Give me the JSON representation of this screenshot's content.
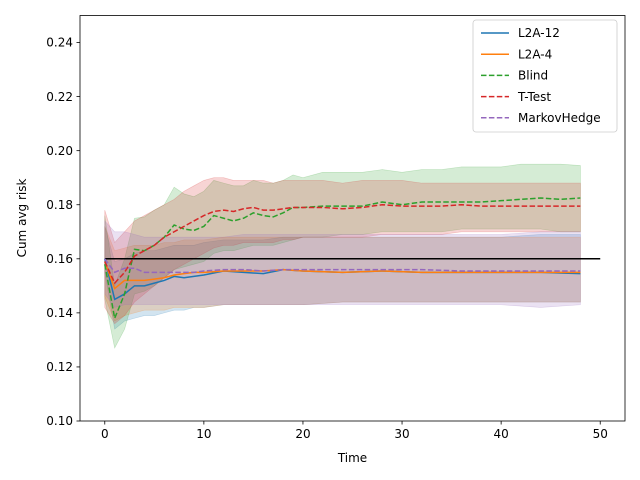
{
  "chart_data": {
    "type": "line",
    "title": "",
    "xlabel": "Time",
    "ylabel": "Cum avg risk",
    "xlim": [
      -2.5,
      52.5
    ],
    "ylim": [
      0.1,
      0.25
    ],
    "xticks": [
      0,
      10,
      20,
      30,
      40,
      50
    ],
    "yticks": [
      0.1,
      0.12,
      0.14,
      0.16,
      0.18,
      0.2,
      0.22,
      0.24
    ],
    "xtick_labels": [
      "0",
      "10",
      "20",
      "30",
      "40",
      "50"
    ],
    "ytick_labels": [
      "0.10",
      "0.12",
      "0.14",
      "0.16",
      "0.18",
      "0.20",
      "0.22",
      "0.24"
    ],
    "grid": false,
    "legend_position": "top-right",
    "reference_line": {
      "y": 0.16,
      "x": [
        0,
        50
      ],
      "color": "#000000"
    },
    "series": [
      {
        "name": "L2A-12",
        "color": "#1f77b4",
        "style": "solid",
        "x": [
          0,
          1,
          2,
          3,
          4,
          5,
          6,
          7,
          8,
          9,
          10,
          12,
          14,
          16,
          18,
          20,
          24,
          28,
          32,
          36,
          40,
          44,
          48
        ],
        "y": [
          0.16,
          0.145,
          0.147,
          0.15,
          0.15,
          0.151,
          0.152,
          0.1535,
          0.153,
          0.1535,
          0.154,
          0.1555,
          0.155,
          0.1545,
          0.156,
          0.1555,
          0.155,
          0.1555,
          0.155,
          0.155,
          0.155,
          0.155,
          0.1545
        ],
        "lower": [
          0.155,
          0.134,
          0.137,
          0.138,
          0.139,
          0.139,
          0.14,
          0.141,
          0.141,
          0.142,
          0.142,
          0.143,
          0.143,
          0.143,
          0.143,
          0.143,
          0.144,
          0.144,
          0.144,
          0.144,
          0.144,
          0.144,
          0.144
        ],
        "upper": [
          0.172,
          0.159,
          0.16,
          0.162,
          0.163,
          0.163,
          0.164,
          0.165,
          0.165,
          0.165,
          0.166,
          0.167,
          0.167,
          0.167,
          0.168,
          0.168,
          0.168,
          0.168,
          0.168,
          0.168,
          0.168,
          0.169,
          0.169
        ]
      },
      {
        "name": "L2A-4",
        "color": "#ff7f0e",
        "style": "solid",
        "x": [
          0,
          1,
          2,
          3,
          4,
          5,
          6,
          7,
          8,
          9,
          10,
          12,
          14,
          16,
          18,
          20,
          24,
          28,
          32,
          36,
          40,
          44,
          48
        ],
        "y": [
          0.159,
          0.149,
          0.152,
          0.152,
          0.152,
          0.1525,
          0.153,
          0.154,
          0.1545,
          0.155,
          0.155,
          0.1555,
          0.1555,
          0.1555,
          0.156,
          0.1555,
          0.155,
          0.1555,
          0.155,
          0.155,
          0.155,
          0.155,
          0.155
        ],
        "lower": [
          0.146,
          0.137,
          0.139,
          0.14,
          0.141,
          0.141,
          0.141,
          0.142,
          0.142,
          0.142,
          0.142,
          0.143,
          0.143,
          0.143,
          0.143,
          0.143,
          0.144,
          0.144,
          0.144,
          0.144,
          0.144,
          0.144,
          0.144
        ],
        "upper": [
          0.172,
          0.163,
          0.164,
          0.165,
          0.165,
          0.165,
          0.166,
          0.166,
          0.167,
          0.167,
          0.167,
          0.168,
          0.168,
          0.168,
          0.168,
          0.168,
          0.168,
          0.168,
          0.168,
          0.168,
          0.168,
          0.168,
          0.168
        ]
      },
      {
        "name": "Blind",
        "color": "#2ca02c",
        "style": "dashed",
        "x": [
          0,
          1,
          2,
          3,
          4,
          5,
          6,
          7,
          8,
          9,
          10,
          11,
          12,
          13,
          14,
          15,
          16,
          17,
          18,
          19,
          20,
          22,
          24,
          26,
          28,
          30,
          32,
          34,
          36,
          38,
          40,
          42,
          44,
          46,
          48
        ],
        "y": [
          0.158,
          0.138,
          0.147,
          0.1635,
          0.163,
          0.165,
          0.168,
          0.1725,
          0.171,
          0.1705,
          0.172,
          0.176,
          0.175,
          0.174,
          0.175,
          0.177,
          0.176,
          0.1755,
          0.177,
          0.179,
          0.179,
          0.1795,
          0.1795,
          0.1795,
          0.181,
          0.18,
          0.181,
          0.181,
          0.181,
          0.181,
          0.1815,
          0.182,
          0.1825,
          0.182,
          0.1825
        ],
        "lower": [
          0.145,
          0.127,
          0.134,
          0.147,
          0.148,
          0.15,
          0.153,
          0.156,
          0.157,
          0.158,
          0.159,
          0.162,
          0.163,
          0.163,
          0.164,
          0.165,
          0.165,
          0.165,
          0.166,
          0.167,
          0.168,
          0.168,
          0.169,
          0.169,
          0.17,
          0.17,
          0.17,
          0.17,
          0.171,
          0.171,
          0.171,
          0.171,
          0.171,
          0.17,
          0.17
        ],
        "upper": [
          0.176,
          0.15,
          0.16,
          0.175,
          0.1755,
          0.178,
          0.18,
          0.1865,
          0.184,
          0.183,
          0.185,
          0.189,
          0.188,
          0.187,
          0.187,
          0.189,
          0.188,
          0.188,
          0.189,
          0.191,
          0.19,
          0.192,
          0.192,
          0.192,
          0.193,
          0.192,
          0.193,
          0.193,
          0.194,
          0.194,
          0.194,
          0.195,
          0.195,
          0.195,
          0.1945
        ]
      },
      {
        "name": "T-Test",
        "color": "#d62728",
        "style": "dashed",
        "x": [
          0,
          1,
          2,
          3,
          4,
          5,
          6,
          7,
          8,
          9,
          10,
          11,
          12,
          13,
          14,
          15,
          16,
          17,
          18,
          19,
          20,
          22,
          24,
          26,
          28,
          30,
          32,
          34,
          36,
          38,
          40,
          42,
          44,
          46,
          48
        ],
        "y": [
          0.159,
          0.151,
          0.155,
          0.161,
          0.163,
          0.165,
          0.168,
          0.17,
          0.172,
          0.174,
          0.176,
          0.1775,
          0.178,
          0.1775,
          0.1785,
          0.179,
          0.178,
          0.178,
          0.1785,
          0.179,
          0.179,
          0.179,
          0.1785,
          0.179,
          0.18,
          0.1795,
          0.1795,
          0.1795,
          0.18,
          0.1795,
          0.1795,
          0.1795,
          0.1795,
          0.1795,
          0.1795
        ],
        "lower": [
          0.142,
          0.136,
          0.139,
          0.144,
          0.147,
          0.15,
          0.153,
          0.156,
          0.158,
          0.16,
          0.162,
          0.164,
          0.165,
          0.165,
          0.166,
          0.166,
          0.166,
          0.166,
          0.167,
          0.167,
          0.168,
          0.168,
          0.168,
          0.168,
          0.169,
          0.169,
          0.169,
          0.169,
          0.17,
          0.17,
          0.17,
          0.17,
          0.17,
          0.17,
          0.17
        ],
        "upper": [
          0.178,
          0.166,
          0.17,
          0.174,
          0.176,
          0.178,
          0.18,
          0.182,
          0.185,
          0.187,
          0.189,
          0.19,
          0.19,
          0.189,
          0.189,
          0.189,
          0.189,
          0.188,
          0.189,
          0.189,
          0.189,
          0.189,
          0.188,
          0.189,
          0.189,
          0.189,
          0.188,
          0.188,
          0.188,
          0.188,
          0.188,
          0.188,
          0.188,
          0.188,
          0.188
        ]
      },
      {
        "name": "MarkovHedge",
        "color": "#9467bd",
        "style": "dashed",
        "x": [
          0,
          1,
          2,
          3,
          4,
          5,
          6,
          7,
          8,
          9,
          10,
          12,
          14,
          16,
          18,
          20,
          24,
          28,
          32,
          36,
          40,
          44,
          48
        ],
        "y": [
          0.16,
          0.155,
          0.1565,
          0.1565,
          0.155,
          0.155,
          0.155,
          0.155,
          0.155,
          0.155,
          0.1555,
          0.156,
          0.156,
          0.1555,
          0.156,
          0.156,
          0.156,
          0.156,
          0.156,
          0.1555,
          0.1555,
          0.1555,
          0.1555
        ],
        "lower": [
          0.147,
          0.142,
          0.143,
          0.143,
          0.143,
          0.143,
          0.143,
          0.143,
          0.143,
          0.143,
          0.143,
          0.143,
          0.143,
          0.143,
          0.143,
          0.143,
          0.143,
          0.143,
          0.143,
          0.143,
          0.143,
          0.142,
          0.143
        ],
        "upper": [
          0.174,
          0.17,
          0.17,
          0.169,
          0.168,
          0.168,
          0.168,
          0.168,
          0.168,
          0.168,
          0.168,
          0.168,
          0.169,
          0.169,
          0.169,
          0.169,
          0.169,
          0.169,
          0.169,
          0.169,
          0.169,
          0.17,
          0.17
        ]
      }
    ]
  }
}
